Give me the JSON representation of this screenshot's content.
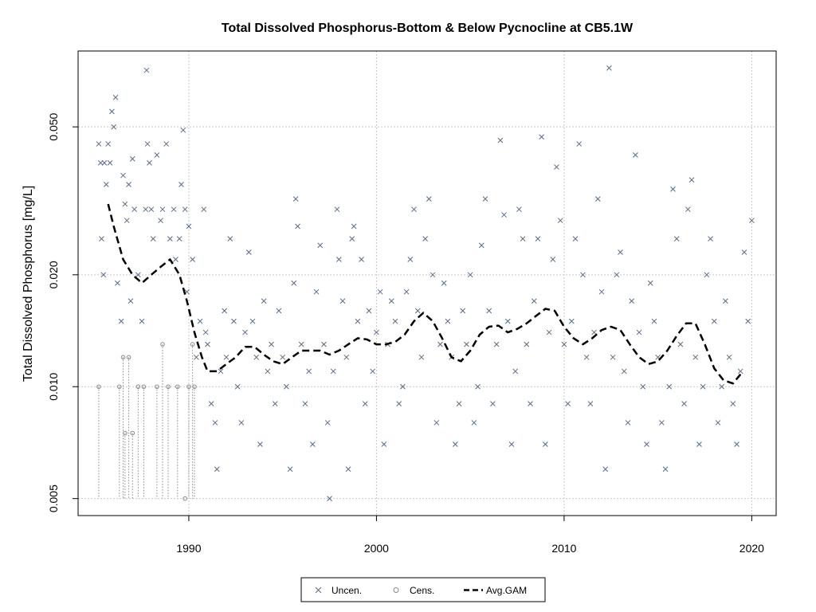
{
  "chart_data": {
    "type": "scatter",
    "title": "Total Dissolved Phosphorus-Bottom & Below Pycnocline at CB5.1W",
    "xlabel": "",
    "ylabel": "Total Dissolved Phosphorus [mg/L]",
    "y_scale": "log",
    "xlim": [
      1984.1,
      2021.3
    ],
    "ylim": [
      0.0045,
      0.08
    ],
    "x_ticks": [
      1990,
      2000,
      2010,
      2020
    ],
    "x_tick_labels": [
      "1990",
      "2000",
      "2010",
      "2020"
    ],
    "y_ticks": [
      0.005,
      0.01,
      0.02,
      0.05
    ],
    "y_tick_labels": [
      "0.005",
      "0.010",
      "0.020",
      "0.050"
    ],
    "grid": true,
    "legend": {
      "placement": "bottom-center",
      "entries": [
        "Uncen.",
        "Cens.",
        "Avg.GAM"
      ]
    },
    "colors": {
      "points": "#5a6b85",
      "censored": "#8a8a8a",
      "gam": "#000000",
      "grid": "#c8c8c8"
    },
    "series": [
      {
        "name": "Uncen.",
        "marker": "x",
        "points": [
          [
            1985.2,
            0.045
          ],
          [
            1985.3,
            0.04
          ],
          [
            1985.35,
            0.025
          ],
          [
            1985.45,
            0.02
          ],
          [
            1985.5,
            0.04
          ],
          [
            1985.6,
            0.035
          ],
          [
            1985.7,
            0.045
          ],
          [
            1985.8,
            0.04
          ],
          [
            1985.9,
            0.055
          ],
          [
            1986.0,
            0.05
          ],
          [
            1986.1,
            0.06
          ],
          [
            1986.2,
            0.019
          ],
          [
            1986.4,
            0.015
          ],
          [
            1986.5,
            0.037
          ],
          [
            1986.6,
            0.031
          ],
          [
            1986.7,
            0.028
          ],
          [
            1986.8,
            0.035
          ],
          [
            1986.9,
            0.017
          ],
          [
            1987.0,
            0.041
          ],
          [
            1987.1,
            0.03
          ],
          [
            1987.3,
            0.02
          ],
          [
            1987.5,
            0.015
          ],
          [
            1987.7,
            0.03
          ],
          [
            1987.8,
            0.045
          ],
          [
            1987.9,
            0.04
          ],
          [
            1987.75,
            0.071
          ],
          [
            1988.0,
            0.03
          ],
          [
            1988.1,
            0.025
          ],
          [
            1988.3,
            0.042
          ],
          [
            1988.5,
            0.028
          ],
          [
            1988.6,
            0.03
          ],
          [
            1988.8,
            0.045
          ],
          [
            1989.0,
            0.025
          ],
          [
            1989.2,
            0.03
          ],
          [
            1989.3,
            0.022
          ],
          [
            1989.5,
            0.025
          ],
          [
            1989.6,
            0.035
          ],
          [
            1989.7,
            0.049
          ],
          [
            1989.8,
            0.03
          ],
          [
            1989.9,
            0.018
          ],
          [
            1990.0,
            0.027
          ],
          [
            1990.2,
            0.022
          ],
          [
            1990.4,
            0.012
          ],
          [
            1990.6,
            0.015
          ],
          [
            1990.8,
            0.03
          ],
          [
            1990.9,
            0.014
          ],
          [
            1991.0,
            0.013
          ],
          [
            1991.2,
            0.009
          ],
          [
            1991.4,
            0.008
          ],
          [
            1991.5,
            0.006
          ],
          [
            1991.7,
            0.011
          ],
          [
            1991.9,
            0.016
          ],
          [
            1992.0,
            0.012
          ],
          [
            1992.2,
            0.025
          ],
          [
            1992.4,
            0.015
          ],
          [
            1992.6,
            0.01
          ],
          [
            1992.8,
            0.008
          ],
          [
            1993.0,
            0.014
          ],
          [
            1993.2,
            0.023
          ],
          [
            1993.4,
            0.015
          ],
          [
            1993.6,
            0.012
          ],
          [
            1993.8,
            0.007
          ],
          [
            1994.0,
            0.017
          ],
          [
            1994.2,
            0.011
          ],
          [
            1994.4,
            0.013
          ],
          [
            1994.6,
            0.009
          ],
          [
            1994.8,
            0.016
          ],
          [
            1995.0,
            0.012
          ],
          [
            1995.2,
            0.01
          ],
          [
            1995.4,
            0.006
          ],
          [
            1995.6,
            0.019
          ],
          [
            1995.7,
            0.032
          ],
          [
            1995.8,
            0.027
          ],
          [
            1996.0,
            0.013
          ],
          [
            1996.2,
            0.009
          ],
          [
            1996.4,
            0.011
          ],
          [
            1996.6,
            0.007
          ],
          [
            1996.8,
            0.018
          ],
          [
            1997.0,
            0.024
          ],
          [
            1997.2,
            0.013
          ],
          [
            1997.4,
            0.008
          ],
          [
            1997.5,
            0.005
          ],
          [
            1997.7,
            0.011
          ],
          [
            1997.9,
            0.03
          ],
          [
            1998.0,
            0.022
          ],
          [
            1998.2,
            0.017
          ],
          [
            1998.4,
            0.012
          ],
          [
            1998.5,
            0.006
          ],
          [
            1998.7,
            0.025
          ],
          [
            1998.8,
            0.027
          ],
          [
            1999.0,
            0.015
          ],
          [
            1999.2,
            0.022
          ],
          [
            1999.4,
            0.009
          ],
          [
            1999.6,
            0.016
          ],
          [
            1999.8,
            0.011
          ],
          [
            2000.0,
            0.014
          ],
          [
            2000.2,
            0.018
          ],
          [
            2000.4,
            0.007
          ],
          [
            2000.6,
            0.013
          ],
          [
            2000.8,
            0.017
          ],
          [
            2001.0,
            0.015
          ],
          [
            2001.2,
            0.009
          ],
          [
            2001.4,
            0.01
          ],
          [
            2001.6,
            0.018
          ],
          [
            2001.8,
            0.022
          ],
          [
            2002.0,
            0.03
          ],
          [
            2002.2,
            0.016
          ],
          [
            2002.4,
            0.012
          ],
          [
            2002.6,
            0.025
          ],
          [
            2002.8,
            0.032
          ],
          [
            2003.0,
            0.02
          ],
          [
            2003.2,
            0.008
          ],
          [
            2003.4,
            0.013
          ],
          [
            2003.6,
            0.019
          ],
          [
            2003.8,
            0.015
          ],
          [
            2004.0,
            0.012
          ],
          [
            2004.2,
            0.007
          ],
          [
            2004.4,
            0.009
          ],
          [
            2004.6,
            0.016
          ],
          [
            2004.8,
            0.013
          ],
          [
            2005.0,
            0.02
          ],
          [
            2005.2,
            0.008
          ],
          [
            2005.4,
            0.01
          ],
          [
            2005.6,
            0.024
          ],
          [
            2005.8,
            0.032
          ],
          [
            2006.0,
            0.016
          ],
          [
            2006.2,
            0.009
          ],
          [
            2006.4,
            0.013
          ],
          [
            2006.6,
            0.046
          ],
          [
            2006.8,
            0.029
          ],
          [
            2007.0,
            0.015
          ],
          [
            2007.2,
            0.007
          ],
          [
            2007.4,
            0.011
          ],
          [
            2007.6,
            0.03
          ],
          [
            2007.8,
            0.025
          ],
          [
            2008.0,
            0.013
          ],
          [
            2008.2,
            0.009
          ],
          [
            2008.4,
            0.017
          ],
          [
            2008.6,
            0.025
          ],
          [
            2008.8,
            0.047
          ],
          [
            2009.0,
            0.007
          ],
          [
            2009.2,
            0.014
          ],
          [
            2009.4,
            0.022
          ],
          [
            2009.6,
            0.039
          ],
          [
            2009.8,
            0.028
          ],
          [
            2010.0,
            0.013
          ],
          [
            2010.2,
            0.009
          ],
          [
            2010.4,
            0.015
          ],
          [
            2010.6,
            0.025
          ],
          [
            2010.8,
            0.045
          ],
          [
            2011.0,
            0.02
          ],
          [
            2011.2,
            0.012
          ],
          [
            2011.4,
            0.009
          ],
          [
            2011.6,
            0.014
          ],
          [
            2011.8,
            0.032
          ],
          [
            2012.0,
            0.018
          ],
          [
            2012.2,
            0.006
          ],
          [
            2012.4,
            0.072
          ],
          [
            2012.6,
            0.012
          ],
          [
            2012.8,
            0.02
          ],
          [
            2013.0,
            0.023
          ],
          [
            2013.2,
            0.011
          ],
          [
            2013.4,
            0.008
          ],
          [
            2013.6,
            0.017
          ],
          [
            2013.8,
            0.042
          ],
          [
            2014.0,
            0.014
          ],
          [
            2014.2,
            0.01
          ],
          [
            2014.4,
            0.007
          ],
          [
            2014.6,
            0.019
          ],
          [
            2014.8,
            0.015
          ],
          [
            2015.0,
            0.012
          ],
          [
            2015.2,
            0.008
          ],
          [
            2015.4,
            0.006
          ],
          [
            2015.6,
            0.01
          ],
          [
            2015.8,
            0.034
          ],
          [
            2016.0,
            0.025
          ],
          [
            2016.2,
            0.013
          ],
          [
            2016.4,
            0.009
          ],
          [
            2016.6,
            0.03
          ],
          [
            2016.8,
            0.036
          ],
          [
            2017.0,
            0.012
          ],
          [
            2017.2,
            0.007
          ],
          [
            2017.4,
            0.01
          ],
          [
            2017.6,
            0.02
          ],
          [
            2017.8,
            0.025
          ],
          [
            2018.0,
            0.015
          ],
          [
            2018.2,
            0.008
          ],
          [
            2018.4,
            0.01
          ],
          [
            2018.6,
            0.017
          ],
          [
            2018.8,
            0.012
          ],
          [
            2019.0,
            0.009
          ],
          [
            2019.2,
            0.007
          ],
          [
            2019.4,
            0.011
          ],
          [
            2019.6,
            0.023
          ],
          [
            2019.8,
            0.015
          ],
          [
            2020.0,
            0.028
          ]
        ]
      },
      {
        "name": "Cens.",
        "marker": "circle",
        "points": [
          [
            1985.2,
            0.01
          ],
          [
            1986.3,
            0.01
          ],
          [
            1986.5,
            0.012
          ],
          [
            1986.6,
            0.0075
          ],
          [
            1986.8,
            0.012
          ],
          [
            1987.0,
            0.0075
          ],
          [
            1987.3,
            0.01
          ],
          [
            1987.6,
            0.01
          ],
          [
            1988.3,
            0.01
          ],
          [
            1988.6,
            0.013
          ],
          [
            1988.9,
            0.01
          ],
          [
            1989.4,
            0.01
          ],
          [
            1989.8,
            0.005
          ],
          [
            1990.0,
            0.01
          ],
          [
            1990.2,
            0.013
          ],
          [
            1990.3,
            0.01
          ]
        ]
      },
      {
        "name": "Avg.GAM",
        "line": "dashed",
        "points": [
          [
            1985.7,
            0.031
          ],
          [
            1986.0,
            0.027
          ],
          [
            1986.5,
            0.022
          ],
          [
            1987.0,
            0.02
          ],
          [
            1987.5,
            0.019
          ],
          [
            1988.0,
            0.02
          ],
          [
            1988.5,
            0.021
          ],
          [
            1989.0,
            0.022
          ],
          [
            1989.5,
            0.02
          ],
          [
            1989.9,
            0.017
          ],
          [
            1990.3,
            0.014
          ],
          [
            1990.7,
            0.012
          ],
          [
            1991.0,
            0.011
          ],
          [
            1991.5,
            0.011
          ],
          [
            1992.0,
            0.0115
          ],
          [
            1992.5,
            0.012
          ],
          [
            1993.0,
            0.0128
          ],
          [
            1993.5,
            0.0128
          ],
          [
            1994.0,
            0.0122
          ],
          [
            1994.5,
            0.0117
          ],
          [
            1995.0,
            0.0115
          ],
          [
            1995.5,
            0.012
          ],
          [
            1996.0,
            0.0125
          ],
          [
            1996.5,
            0.0125
          ],
          [
            1997.0,
            0.0125
          ],
          [
            1997.5,
            0.0122
          ],
          [
            1998.0,
            0.0125
          ],
          [
            1998.5,
            0.013
          ],
          [
            1999.0,
            0.0135
          ],
          [
            1999.5,
            0.0134
          ],
          [
            2000.0,
            0.013
          ],
          [
            2000.5,
            0.013
          ],
          [
            2001.0,
            0.0132
          ],
          [
            2001.5,
            0.0138
          ],
          [
            2002.0,
            0.015
          ],
          [
            2002.5,
            0.0158
          ],
          [
            2003.0,
            0.015
          ],
          [
            2003.5,
            0.0135
          ],
          [
            2004.0,
            0.012
          ],
          [
            2004.5,
            0.0117
          ],
          [
            2005.0,
            0.0125
          ],
          [
            2005.5,
            0.0138
          ],
          [
            2006.0,
            0.0145
          ],
          [
            2006.5,
            0.0146
          ],
          [
            2007.0,
            0.014
          ],
          [
            2007.5,
            0.0143
          ],
          [
            2008.0,
            0.0148
          ],
          [
            2008.5,
            0.0155
          ],
          [
            2009.0,
            0.0162
          ],
          [
            2009.5,
            0.016
          ],
          [
            2010.0,
            0.0145
          ],
          [
            2010.5,
            0.0135
          ],
          [
            2011.0,
            0.013
          ],
          [
            2011.5,
            0.0135
          ],
          [
            2012.0,
            0.0142
          ],
          [
            2012.5,
            0.0145
          ],
          [
            2013.0,
            0.0142
          ],
          [
            2013.5,
            0.013
          ],
          [
            2014.0,
            0.012
          ],
          [
            2014.5,
            0.0115
          ],
          [
            2015.0,
            0.0117
          ],
          [
            2015.5,
            0.0125
          ],
          [
            2016.0,
            0.0137
          ],
          [
            2016.5,
            0.0148
          ],
          [
            2017.0,
            0.0148
          ],
          [
            2017.5,
            0.013
          ],
          [
            2018.0,
            0.0112
          ],
          [
            2018.5,
            0.0104
          ],
          [
            2019.0,
            0.0102
          ],
          [
            2019.4,
            0.0108
          ]
        ]
      }
    ]
  }
}
